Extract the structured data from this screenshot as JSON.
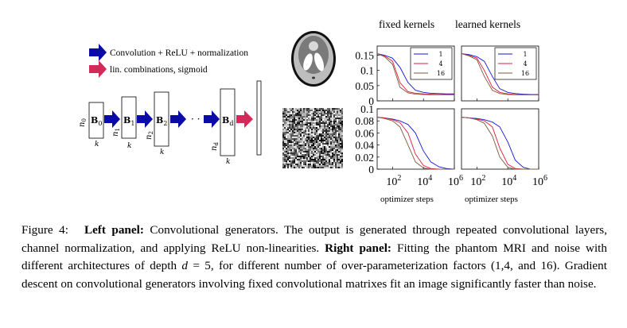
{
  "legend": {
    "conv": "Convolution + ReLU + normalization",
    "lin": "lin. combinations, sigmoid"
  },
  "colors": {
    "conv_arrow": "#0a0aa6",
    "lin_arrow": "#d42a5a",
    "series_1": "#1515d6",
    "series_4": "#e01b3c",
    "series_16": "#7a5a3c"
  },
  "network": {
    "blocks": [
      "B",
      "B",
      "B",
      "B"
    ],
    "subscripts": [
      "0",
      "1",
      "2",
      "d"
    ],
    "side_labels": [
      "n",
      "n",
      "n",
      "n"
    ],
    "side_subscripts": [
      "0",
      "1",
      "2",
      "d"
    ],
    "k_label": "k",
    "dots": "· ·"
  },
  "panels": {
    "col_titles": [
      "fixed kernels",
      "learned kernels"
    ],
    "xlabel": "optimizer steps",
    "legend_labels": [
      "1",
      "4",
      "16"
    ]
  },
  "chart_data": [
    {
      "type": "line",
      "row": "mri",
      "column": "fixed kernels",
      "xscale": "log",
      "xlim": [
        10,
        1000000
      ],
      "ylim": [
        0,
        0.18
      ],
      "yticks": [
        "0",
        "0.05",
        "0.1",
        "0.15"
      ],
      "x": [
        10,
        30,
        100,
        300,
        1000,
        3000,
        10000,
        30000,
        100000,
        300000,
        1000000
      ],
      "series": [
        {
          "name": "1",
          "values": [
            0.155,
            0.15,
            0.14,
            0.11,
            0.06,
            0.035,
            0.028,
            0.025,
            0.024,
            0.023,
            0.023
          ]
        },
        {
          "name": "4",
          "values": [
            0.155,
            0.148,
            0.13,
            0.06,
            0.03,
            0.025,
            0.023,
            0.022,
            0.021,
            0.021,
            0.021
          ]
        },
        {
          "name": "16",
          "values": [
            0.155,
            0.145,
            0.12,
            0.045,
            0.026,
            0.022,
            0.021,
            0.02,
            0.02,
            0.02,
            0.02
          ]
        }
      ]
    },
    {
      "type": "line",
      "row": "mri",
      "column": "learned kernels",
      "xscale": "log",
      "xlim": [
        10,
        1000000
      ],
      "ylim": [
        0,
        0.18
      ],
      "yticks": [],
      "x": [
        10,
        30,
        100,
        300,
        1000,
        3000,
        10000,
        30000,
        100000,
        300000,
        1000000
      ],
      "series": [
        {
          "name": "1",
          "values": [
            0.155,
            0.152,
            0.145,
            0.13,
            0.08,
            0.04,
            0.028,
            0.024,
            0.022,
            0.021,
            0.021
          ]
        },
        {
          "name": "4",
          "values": [
            0.155,
            0.15,
            0.14,
            0.1,
            0.045,
            0.028,
            0.023,
            0.021,
            0.02,
            0.02,
            0.02
          ]
        },
        {
          "name": "16",
          "values": [
            0.155,
            0.148,
            0.135,
            0.08,
            0.035,
            0.024,
            0.021,
            0.02,
            0.02,
            0.02,
            0.02
          ]
        }
      ]
    },
    {
      "type": "line",
      "row": "noise",
      "column": "fixed kernels",
      "xscale": "log",
      "xlim": [
        10,
        1000000
      ],
      "ylim": [
        0,
        0.1
      ],
      "yticks": [
        "0",
        "0.02",
        "0.04",
        "0.06",
        "0.08",
        "0.1"
      ],
      "xticks": [
        "10^2",
        "10^4",
        "10^6"
      ],
      "x": [
        10,
        30,
        100,
        300,
        1000,
        3000,
        10000,
        30000,
        100000,
        300000,
        1000000
      ],
      "series": [
        {
          "name": "1",
          "values": [
            0.086,
            0.085,
            0.083,
            0.08,
            0.074,
            0.06,
            0.03,
            0.012,
            0.004,
            0.001,
            0.0
          ]
        },
        {
          "name": "4",
          "values": [
            0.086,
            0.085,
            0.082,
            0.077,
            0.06,
            0.025,
            0.006,
            0.001,
            0.0,
            0.0,
            0.0
          ]
        },
        {
          "name": "16",
          "values": [
            0.086,
            0.084,
            0.08,
            0.07,
            0.04,
            0.012,
            0.002,
            0.0,
            0.0,
            0.0,
            0.0
          ]
        }
      ]
    },
    {
      "type": "line",
      "row": "noise",
      "column": "learned kernels",
      "xscale": "log",
      "xlim": [
        10,
        1000000
      ],
      "ylim": [
        0,
        0.1
      ],
      "yticks": [],
      "xticks": [
        "10^2",
        "10^4",
        "10^6"
      ],
      "x": [
        10,
        30,
        100,
        300,
        1000,
        3000,
        10000,
        30000,
        100000,
        300000,
        1000000
      ],
      "series": [
        {
          "name": "1",
          "values": [
            0.086,
            0.085,
            0.084,
            0.082,
            0.078,
            0.07,
            0.045,
            0.015,
            0.003,
            0.0,
            0.0
          ]
        },
        {
          "name": "4",
          "values": [
            0.086,
            0.085,
            0.083,
            0.08,
            0.07,
            0.035,
            0.008,
            0.001,
            0.0,
            0.0,
            0.0
          ]
        },
        {
          "name": "16",
          "values": [
            0.086,
            0.085,
            0.082,
            0.076,
            0.055,
            0.02,
            0.003,
            0.0,
            0.0,
            0.0,
            0.0
          ]
        }
      ]
    }
  ],
  "caption": {
    "figure_label": "Figure 4:",
    "left_panel_label": "Left panel:",
    "left_panel_text": " Convolutional generators. The output is generated through repeated convolutional layers, channel normalization, and applying ReLU non-linearities. ",
    "right_panel_label": "Right panel:",
    "right_panel_text_a": " Fitting the phantom MRI and noise with different architectures of depth ",
    "math_d": "d",
    "right_panel_text_b": " = 5, for different number of over-parameterization factors (1,4, and 16). Gradient descent on convolutional generators involving fixed convolutional matrixes fit an image significantly faster than noise."
  }
}
